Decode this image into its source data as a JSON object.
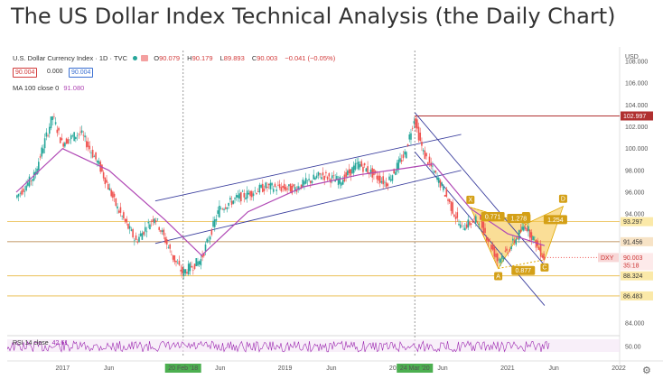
{
  "page_title": "The US Dollar Index Technical Analysis (the Daily Chart)",
  "header": {
    "instrument": "U.S. Dollar Currency Index · 1D · TVC",
    "ohlc": [
      {
        "label": "O",
        "value": "90.079"
      },
      {
        "label": "H",
        "value": "90.179"
      },
      {
        "label": "L",
        "value": "89.893"
      },
      {
        "label": "C",
        "value": "90.003"
      },
      {
        "label": "",
        "value": "−0.041 (−0.05%)"
      }
    ],
    "box_sell": "90.004",
    "spread": "0.000",
    "box_buy": "90.004",
    "ma_label": "MA 100 close 0",
    "ma_value": "91.080",
    "rsi_label": "RSI 14 close",
    "rsi_value": "42.61",
    "currency": "USD"
  },
  "colors": {
    "candle_up": "#26a69a",
    "candle_down": "#ef5350",
    "ma": "#b048b5",
    "channel": "#3b3f9e",
    "harmonic_fill": "#f5c242",
    "harmonic_label": "#d4a017",
    "level_line": "#e8b840",
    "resistance": "#b03030",
    "rsi": "#9c27b0",
    "date_highlight": "#4caf50"
  },
  "chart_data": {
    "type": "candlestick",
    "y_axis": {
      "min": 83,
      "max": 109,
      "ticks": [
        84.0,
        86.483,
        88.324,
        90.003,
        91.456,
        93.297,
        94.0,
        96.0,
        98.0,
        100.0,
        102.0,
        102.997,
        104.0,
        106.0,
        108.0
      ]
    },
    "x_axis": {
      "labels": [
        "2017",
        "Jun",
        "20 Feb '18",
        "Jun",
        "2019",
        "Jun",
        "2020",
        "24 Mar '20",
        "Jun",
        "2021",
        "Jun",
        "2022"
      ],
      "highlighted": [
        "20 Feb '18",
        "24 Mar '20"
      ]
    },
    "price_path": [
      {
        "date": "2016-08",
        "price": 95.5
      },
      {
        "date": "2016-10",
        "price": 97.5
      },
      {
        "date": "2016-12",
        "price": 103.0
      },
      {
        "date": "2017-01",
        "price": 100.5
      },
      {
        "date": "2017-03",
        "price": 101.5
      },
      {
        "date": "2017-05",
        "price": 98.5
      },
      {
        "date": "2017-07",
        "price": 94.5
      },
      {
        "date": "2017-09",
        "price": 91.5
      },
      {
        "date": "2017-11",
        "price": 93.8
      },
      {
        "date": "2018-01",
        "price": 90.0
      },
      {
        "date": "2018-02",
        "price": 88.6
      },
      {
        "date": "2018-04",
        "price": 89.8
      },
      {
        "date": "2018-06",
        "price": 94.5
      },
      {
        "date": "2018-08",
        "price": 95.5
      },
      {
        "date": "2018-11",
        "price": 96.5
      },
      {
        "date": "2019-02",
        "price": 96.3
      },
      {
        "date": "2019-05",
        "price": 97.6
      },
      {
        "date": "2019-07",
        "price": 97.0
      },
      {
        "date": "2019-09",
        "price": 98.6
      },
      {
        "date": "2019-12",
        "price": 96.8
      },
      {
        "date": "2020-02",
        "price": 99.5
      },
      {
        "date": "2020-03",
        "price": 102.8
      },
      {
        "date": "2020-04",
        "price": 99.6
      },
      {
        "date": "2020-06",
        "price": 96.5
      },
      {
        "date": "2020-08",
        "price": 92.8
      },
      {
        "date": "2020-10",
        "price": 93.5
      },
      {
        "date": "2020-12",
        "price": 89.8
      },
      {
        "date": "2021-01",
        "price": 90.5
      },
      {
        "date": "2021-03",
        "price": 93.0
      },
      {
        "date": "2021-05",
        "price": 90.0
      }
    ],
    "ma100_path": [
      {
        "date": "2016-08",
        "price": 96.0
      },
      {
        "date": "2017-01",
        "price": 100.0
      },
      {
        "date": "2017-06",
        "price": 98.0
      },
      {
        "date": "2017-12",
        "price": 93.5
      },
      {
        "date": "2018-04",
        "price": 90.2
      },
      {
        "date": "2018-09",
        "price": 94.2
      },
      {
        "date": "2019-03",
        "price": 96.5
      },
      {
        "date": "2019-09",
        "price": 97.6
      },
      {
        "date": "2020-02",
        "price": 98.2
      },
      {
        "date": "2020-05",
        "price": 98.6
      },
      {
        "date": "2020-09",
        "price": 94.5
      },
      {
        "date": "2021-01",
        "price": 92.2
      },
      {
        "date": "2021-05",
        "price": 91.1
      }
    ],
    "horizontal_levels": [
      {
        "price": 102.997,
        "label": "102.997",
        "style": "resistance"
      },
      {
        "price": 93.297,
        "label": "93.297",
        "style": "level"
      },
      {
        "price": 91.456,
        "label": "91.456",
        "style": "brown"
      },
      {
        "price": 88.324,
        "label": "88.324",
        "style": "level"
      },
      {
        "price": 86.483,
        "label": "86.483",
        "style": "level"
      }
    ],
    "current_price": {
      "value": "90.003",
      "countdown": "35:18",
      "symbol": "DXY"
    },
    "channels": [
      {
        "name": "rising",
        "upper": [
          {
            "date": "2017-11",
            "price": 95.2
          },
          {
            "date": "2020-08",
            "price": 101.3
          }
        ],
        "lower": [
          {
            "date": "2017-11",
            "price": 91.3
          },
          {
            "date": "2020-08",
            "price": 98.0
          }
        ]
      },
      {
        "name": "falling",
        "upper": [
          {
            "date": "2020-03",
            "price": 103.3
          },
          {
            "date": "2021-05",
            "price": 89.3
          }
        ],
        "lower": [
          {
            "date": "2020-03",
            "price": 99.7
          },
          {
            "date": "2021-05",
            "price": 85.6
          }
        ]
      }
    ],
    "harmonic": {
      "points": [
        {
          "label": "X",
          "date": "2020-09",
          "price": 94.6
        },
        {
          "label": "A",
          "date": "2020-12",
          "price": 89.0
        },
        {
          "label": "B",
          "date": "2021-03",
          "price": 93.1
        },
        {
          "label": "C",
          "date": "2021-05",
          "price": 89.8
        },
        {
          "label": "D",
          "date": "2021-07",
          "price": 94.7
        }
      ],
      "ratios": [
        "0.771",
        "0.877",
        "1.254",
        "1.278"
      ]
    },
    "rsi": {
      "label": "RSI 14 close",
      "value": 42.61,
      "tick": "50.00"
    }
  }
}
